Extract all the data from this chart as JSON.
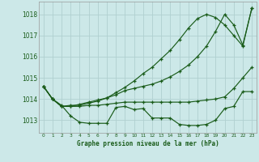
{
  "title": "Graphe pression niveau de la mer (hPa)",
  "bg_color": "#cce8e8",
  "grid_color": "#b0d0d0",
  "line_color": "#1a5c1a",
  "marker_color": "#1a5c1a",
  "x_labels": [
    "0",
    "1",
    "2",
    "3",
    "4",
    "5",
    "6",
    "7",
    "8",
    "9",
    "10",
    "11",
    "12",
    "13",
    "14",
    "15",
    "16",
    "17",
    "18",
    "19",
    "20",
    "21",
    "22",
    "23"
  ],
  "ylim": [
    1012.4,
    1018.6
  ],
  "yticks": [
    1013,
    1014,
    1015,
    1016,
    1017,
    1018
  ],
  "series": [
    [
      1014.6,
      1014.0,
      1013.7,
      1013.2,
      1012.9,
      1012.85,
      1012.85,
      1012.85,
      1013.6,
      1013.65,
      1013.5,
      1013.55,
      1013.1,
      1013.1,
      1013.1,
      1012.8,
      1012.75,
      1012.75,
      1012.8,
      1013.0,
      1013.55,
      1013.65,
      1014.35,
      1014.35
    ],
    [
      1014.6,
      1014.0,
      1013.65,
      1013.65,
      1013.65,
      1013.7,
      1013.7,
      1013.75,
      1013.8,
      1013.85,
      1013.85,
      1013.85,
      1013.85,
      1013.85,
      1013.85,
      1013.85,
      1013.85,
      1013.9,
      1013.95,
      1014.0,
      1014.1,
      1014.5,
      1015.0,
      1015.5
    ],
    [
      1014.6,
      1014.0,
      1013.65,
      1013.65,
      1013.75,
      1013.85,
      1013.95,
      1014.05,
      1014.2,
      1014.4,
      1014.5,
      1014.6,
      1014.7,
      1014.85,
      1015.05,
      1015.3,
      1015.6,
      1016.0,
      1016.5,
      1017.2,
      1018.0,
      1017.5,
      1016.55,
      1018.3
    ],
    [
      1014.6,
      1014.0,
      1013.65,
      1013.7,
      1013.7,
      1013.8,
      1013.9,
      1014.05,
      1014.3,
      1014.55,
      1014.85,
      1015.2,
      1015.5,
      1015.9,
      1016.3,
      1016.8,
      1017.35,
      1017.8,
      1018.0,
      1017.85,
      1017.5,
      1017.0,
      1016.5,
      1018.3
    ]
  ]
}
